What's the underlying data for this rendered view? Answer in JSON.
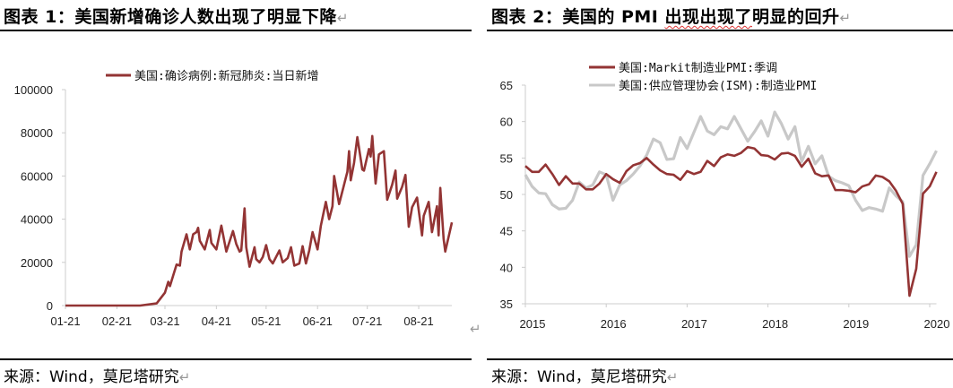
{
  "left_panel": {
    "title_prefix": "图表 1：美国新增确诊人数出现了明显下降",
    "return_mark": "↵",
    "source": "来源：Wind，莫尼塔研究"
  },
  "right_panel": {
    "title_a": "图表 2：美国的 PMI ",
    "title_b": "出现出现了",
    "title_c": "明显的回升",
    "return_mark": "↵",
    "source": "来源：Wind，莫尼塔研究"
  },
  "stray_return_mark": "↵",
  "chart_data": [
    {
      "type": "line",
      "title": "",
      "xlabel": "",
      "ylabel": "",
      "x_unit": "days since 01-21",
      "xlim": [
        0,
        233
      ],
      "ylim": [
        0,
        100000
      ],
      "yticks": [
        0,
        20000,
        40000,
        60000,
        80000,
        100000
      ],
      "xticks": [
        {
          "day": 0,
          "label": "01-21"
        },
        {
          "day": 31,
          "label": "02-21"
        },
        {
          "day": 60,
          "label": "03-21"
        },
        {
          "day": 91,
          "label": "04-21"
        },
        {
          "day": 121,
          "label": "05-21"
        },
        {
          "day": 152,
          "label": "06-21"
        },
        {
          "day": 182,
          "label": "07-21"
        },
        {
          "day": 213,
          "label": "08-21"
        }
      ],
      "legend_position": "top-center",
      "series": [
        {
          "name": "美国:确诊病例:新冠肺炎:当日新增",
          "color": "#933434",
          "x": [
            0,
            45,
            55,
            60,
            62,
            63,
            65,
            67,
            69,
            70,
            73,
            75,
            77,
            79,
            80,
            81,
            84,
            87,
            88,
            91,
            94,
            97,
            101,
            103,
            105,
            106,
            108,
            109,
            111,
            114,
            115,
            117,
            119,
            121,
            123,
            125,
            129,
            131,
            134,
            136,
            138,
            141,
            143,
            145,
            147,
            149,
            152,
            154,
            157,
            159,
            161,
            162,
            165,
            168,
            170,
            171,
            172,
            174,
            176,
            179,
            180,
            183,
            184,
            185,
            187,
            189,
            192,
            194,
            197,
            199,
            200,
            203,
            205,
            207,
            209,
            212,
            215,
            216,
            219,
            221,
            224,
            225,
            226,
            228,
            229,
            233
          ],
          "y": [
            0,
            0,
            1000,
            6000,
            11000,
            9000,
            14000,
            19000,
            18500,
            25000,
            33000,
            26000,
            33000,
            34000,
            36000,
            30000,
            26000,
            35000,
            29000,
            26000,
            37000,
            25000,
            34500,
            28500,
            25000,
            25500,
            45000,
            27000,
            18000,
            27000,
            21500,
            20000,
            22500,
            28000,
            21500,
            19500,
            25500,
            20000,
            22000,
            27000,
            18500,
            19500,
            27500,
            19500,
            25500,
            34000,
            26000,
            37000,
            48000,
            40000,
            46000,
            60000,
            47000,
            56000,
            62000,
            71500,
            58000,
            66000,
            78000,
            63000,
            62500,
            72500,
            69000,
            78500,
            56500,
            70000,
            71500,
            49000,
            56000,
            62500,
            49500,
            55000,
            60500,
            36500,
            45500,
            50000,
            32500,
            41500,
            48000,
            34000,
            46000,
            32500,
            54500,
            31000,
            25000,
            38500
          ]
        }
      ]
    },
    {
      "type": "line",
      "title": "",
      "xlabel": "",
      "ylabel": "",
      "x_unit": "months since 2015-01",
      "xlim": [
        0,
        61
      ],
      "ylim": [
        35,
        65
      ],
      "yticks": [
        35,
        40,
        45,
        50,
        55,
        60,
        65
      ],
      "xticks": [
        {
          "month": 0,
          "label": "2015"
        },
        {
          "month": 12,
          "label": "2016"
        },
        {
          "month": 24,
          "label": "2017"
        },
        {
          "month": 36,
          "label": "2018"
        },
        {
          "month": 48,
          "label": "2019"
        },
        {
          "month": 60,
          "label": "2020"
        }
      ],
      "legend_position": "top-center",
      "series": [
        {
          "name": "美国:Markit制造业PMI:季调",
          "color": "#933434",
          "y": [
            53.9,
            53.1,
            53.1,
            54.1,
            52.8,
            51.3,
            52.5,
            51.5,
            51.5,
            50.7,
            50.7,
            51.5,
            52.8,
            52.1,
            51.6,
            53.2,
            54.0,
            54.3,
            55.0,
            54.1,
            53.3,
            52.8,
            52.7,
            52.0,
            53.2,
            52.8,
            53.1,
            54.6,
            53.9,
            55.1,
            55.5,
            55.3,
            55.7,
            56.5,
            56.3,
            55.4,
            55.3,
            54.8,
            55.6,
            55.7,
            55.3,
            53.8,
            54.9,
            52.9,
            52.5,
            52.6,
            50.6,
            50.6,
            50.5,
            50.3,
            51.1,
            51.4,
            52.6,
            52.4,
            51.8,
            50.5,
            48.7,
            36.1,
            39.8,
            50.1,
            51.1,
            53.1
          ]
        },
        {
          "name": "美国:供应管理协会(ISM):制造业PMI",
          "color": "#c8c8c8",
          "y": [
            52.7,
            51.1,
            50.2,
            50.1,
            48.6,
            48.0,
            48.1,
            49.2,
            51.7,
            50.9,
            51.3,
            53.1,
            52.7,
            49.2,
            51.3,
            51.9,
            52.8,
            53.9,
            55.4,
            57.6,
            57.1,
            54.8,
            54.9,
            57.8,
            56.3,
            58.5,
            60.7,
            58.7,
            58.2,
            59.3,
            59.0,
            60.7,
            59.0,
            57.3,
            58.6,
            60.1,
            58.0,
            61.3,
            59.7,
            57.6,
            59.3,
            54.5,
            56.6,
            54.2,
            55.3,
            52.5,
            51.9,
            51.6,
            51.2,
            49.2,
            47.8,
            48.2,
            48.0,
            47.7,
            50.9,
            49.8,
            49.0,
            41.5,
            43.1,
            52.6,
            54.2,
            56.0
          ]
        }
      ]
    }
  ]
}
